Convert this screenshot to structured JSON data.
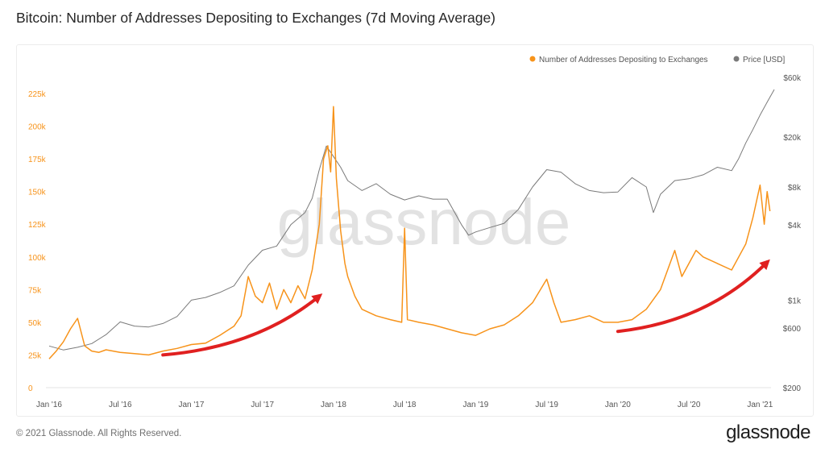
{
  "page": {
    "title": "Bitcoin: Number of Addresses Depositing to Exchanges (7d Moving Average)",
    "copyright": "© 2021 Glassnode. All Rights Reserved.",
    "brand": "glassnode",
    "watermark": "glassnode"
  },
  "chart_data": {
    "type": "line",
    "grid": false,
    "legend_position": "top-right",
    "legend": [
      {
        "label": "Number of Addresses Depositing to Exchanges",
        "color": "#f7931a"
      },
      {
        "label": "Price [USD]",
        "color": "#7a7a7a"
      }
    ],
    "x_ticks": [
      "Jan '16",
      "Jul '16",
      "Jan '17",
      "Jul '17",
      "Jan '18",
      "Jul '18",
      "Jan '19",
      "Jul '19",
      "Jan '20",
      "Jul '20",
      "Jan '21"
    ],
    "x_range": [
      2016.0,
      2021.1
    ],
    "y_left": {
      "ticks": [
        "0",
        "25k",
        "50k",
        "75k",
        "100k",
        "125k",
        "150k",
        "175k",
        "200k",
        "225k"
      ],
      "range": [
        0,
        225000
      ],
      "color": "#f7931a"
    },
    "y_right": {
      "ticks": [
        "$200",
        "$600",
        "$1k",
        "$4k",
        "$8k",
        "$20k",
        "$60k"
      ],
      "tick_values": [
        200,
        600,
        1000,
        4000,
        8000,
        20000,
        60000
      ],
      "scale": "log",
      "range": [
        200,
        60000
      ]
    },
    "series": [
      {
        "name": "Number of Addresses Depositing to Exchanges",
        "axis": "left",
        "color": "#f7931a",
        "x": [
          2016.0,
          2016.05,
          2016.1,
          2016.15,
          2016.2,
          2016.25,
          2016.3,
          2016.35,
          2016.4,
          2016.5,
          2016.6,
          2016.7,
          2016.8,
          2016.9,
          2017.0,
          2017.1,
          2017.2,
          2017.3,
          2017.35,
          2017.4,
          2017.45,
          2017.5,
          2017.55,
          2017.6,
          2017.65,
          2017.7,
          2017.75,
          2017.8,
          2017.85,
          2017.9,
          2017.93,
          2017.96,
          2017.98,
          2018.0,
          2018.02,
          2018.05,
          2018.08,
          2018.1,
          2018.15,
          2018.2,
          2018.3,
          2018.4,
          2018.48,
          2018.5,
          2018.52,
          2018.6,
          2018.7,
          2018.8,
          2018.9,
          2019.0,
          2019.1,
          2019.2,
          2019.3,
          2019.4,
          2019.5,
          2019.55,
          2019.6,
          2019.7,
          2019.8,
          2019.9,
          2020.0,
          2020.1,
          2020.2,
          2020.3,
          2020.4,
          2020.45,
          2020.5,
          2020.55,
          2020.6,
          2020.7,
          2020.8,
          2020.85,
          2020.9,
          2020.95,
          2021.0,
          2021.03,
          2021.05,
          2021.07
        ],
        "y": [
          22000,
          28000,
          35000,
          45000,
          53000,
          32000,
          28000,
          27000,
          29000,
          27000,
          26000,
          25000,
          28000,
          30000,
          33000,
          34000,
          40000,
          47000,
          55000,
          85000,
          70000,
          65000,
          80000,
          60000,
          75000,
          65000,
          78000,
          68000,
          90000,
          125000,
          175000,
          185000,
          165000,
          215000,
          160000,
          120000,
          95000,
          85000,
          70000,
          60000,
          55000,
          52000,
          50000,
          122000,
          52000,
          50000,
          48000,
          45000,
          42000,
          40000,
          45000,
          48000,
          55000,
          65000,
          83000,
          65000,
          50000,
          52000,
          55000,
          50000,
          50000,
          52000,
          60000,
          75000,
          105000,
          85000,
          95000,
          105000,
          100000,
          95000,
          90000,
          100000,
          110000,
          130000,
          155000,
          125000,
          150000,
          135000
        ]
      },
      {
        "name": "Price [USD]",
        "axis": "right",
        "color": "#7a7a7a",
        "x": [
          2016.0,
          2016.1,
          2016.2,
          2016.3,
          2016.4,
          2016.5,
          2016.6,
          2016.7,
          2016.8,
          2016.9,
          2017.0,
          2017.1,
          2017.2,
          2017.3,
          2017.4,
          2017.5,
          2017.6,
          2017.7,
          2017.8,
          2017.85,
          2017.9,
          2017.95,
          2018.0,
          2018.05,
          2018.1,
          2018.2,
          2018.3,
          2018.4,
          2018.5,
          2018.6,
          2018.7,
          2018.8,
          2018.9,
          2018.95,
          2019.0,
          2019.1,
          2019.2,
          2019.3,
          2019.4,
          2019.5,
          2019.6,
          2019.7,
          2019.8,
          2019.9,
          2020.0,
          2020.1,
          2020.2,
          2020.25,
          2020.3,
          2020.4,
          2020.5,
          2020.6,
          2020.7,
          2020.8,
          2020.85,
          2020.9,
          2020.95,
          2021.0,
          2021.05,
          2021.1
        ],
        "y": [
          430,
          400,
          420,
          450,
          530,
          670,
          620,
          610,
          650,
          740,
          1000,
          1050,
          1150,
          1300,
          1900,
          2500,
          2700,
          4000,
          5000,
          6500,
          11000,
          17000,
          14000,
          11500,
          9000,
          7500,
          8500,
          7000,
          6300,
          6800,
          6400,
          6400,
          4000,
          3300,
          3500,
          3800,
          4100,
          5300,
          8000,
          11000,
          10500,
          8500,
          7500,
          7200,
          7300,
          9500,
          8000,
          5000,
          7000,
          9000,
          9300,
          10000,
          11500,
          10800,
          13500,
          18000,
          23000,
          30000,
          38000,
          48000
        ]
      }
    ],
    "annotations": [
      {
        "type": "arrow",
        "color": "#e02020",
        "from": [
          2016.8,
          25000
        ],
        "to": [
          2017.9,
          70000
        ]
      },
      {
        "type": "arrow",
        "color": "#e02020",
        "from": [
          2020.0,
          43000
        ],
        "to": [
          2021.05,
          96000
        ]
      }
    ]
  }
}
